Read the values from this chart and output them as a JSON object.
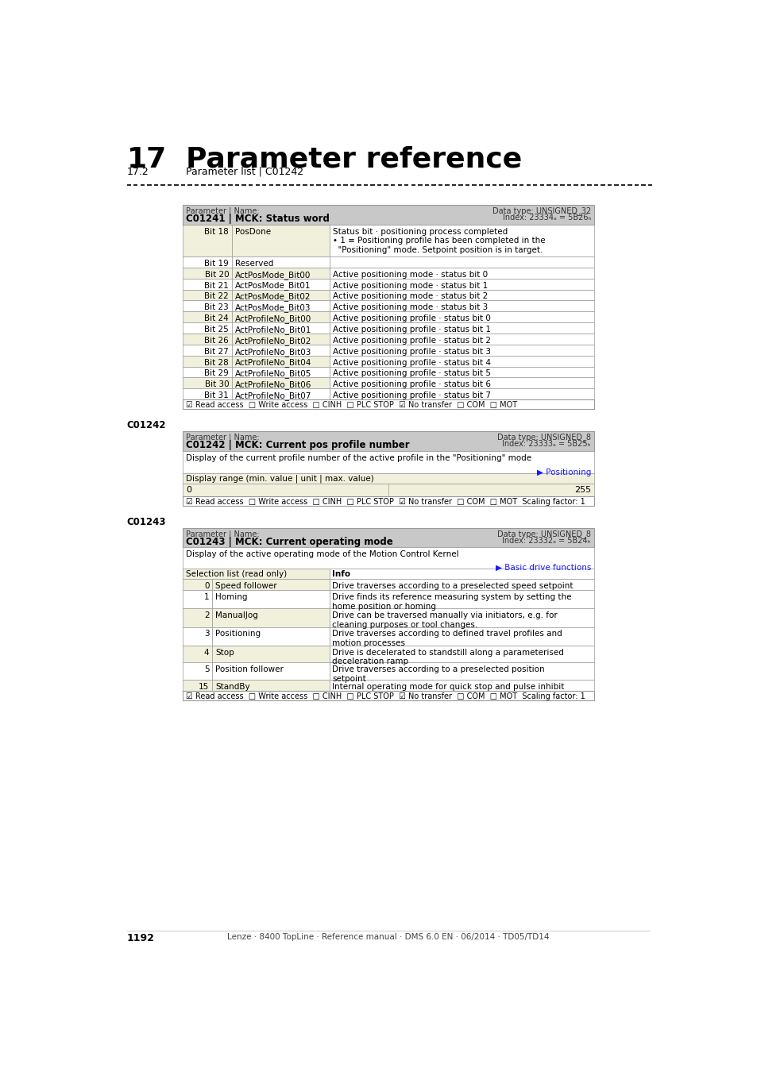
{
  "page_title_num": "17",
  "page_title": "Parameter reference",
  "page_subtitle_num": "17.2",
  "page_subtitle": "Parameter list | C01242",
  "section_label_1": "C01242",
  "section_label_2": "C01243",
  "table1": {
    "header_left": "Parameter | Name:",
    "header_title": "C01241 | MCK: Status word",
    "header_right_top": "Data type: UNSIGNED_32",
    "header_right_bot": "Index: 23334ₐ = 5B26ₕ",
    "rows": [
      [
        "Bit 18",
        "PosDone",
        "Status bit · positioning process completed\n• 1 ≡ Positioning profile has been completed in the\n  \"Positioning\" mode. Setpoint position is in target."
      ],
      [
        "Bit 19",
        "Reserved",
        ""
      ],
      [
        "Bit 20",
        "ActPosMode_Bit00",
        "Active positioning mode · status bit 0"
      ],
      [
        "Bit 21",
        "ActPosMode_Bit01",
        "Active positioning mode · status bit 1"
      ],
      [
        "Bit 22",
        "ActPosMode_Bit02",
        "Active positioning mode · status bit 2"
      ],
      [
        "Bit 23",
        "ActPosMode_Bit03",
        "Active positioning mode · status bit 3"
      ],
      [
        "Bit 24",
        "ActProfileNo_Bit00",
        "Active positioning profile · status bit 0"
      ],
      [
        "Bit 25",
        "ActProfileNo_Bit01",
        "Active positioning profile · status bit 1"
      ],
      [
        "Bit 26",
        "ActProfileNo_Bit02",
        "Active positioning profile · status bit 2"
      ],
      [
        "Bit 27",
        "ActProfileNo_Bit03",
        "Active positioning profile · status bit 3"
      ],
      [
        "Bit 28",
        "ActProfileNo_Bit04",
        "Active positioning profile · status bit 4"
      ],
      [
        "Bit 29",
        "ActProfileNo_Bit05",
        "Active positioning profile · status bit 5"
      ],
      [
        "Bit 30",
        "ActProfileNo_Bit06",
        "Active positioning profile · status bit 6"
      ],
      [
        "Bit 31",
        "ActProfileNo_Bit07",
        "Active positioning profile · status bit 7"
      ]
    ],
    "footer": "☑ Read access  □ Write access  □ CINH  □ PLC STOP  ☑ No transfer  □ COM  □ MOT"
  },
  "table2": {
    "header_left": "Parameter | Name:",
    "header_title": "C01242 | MCK: Current pos profile number",
    "header_right_top": "Data type: UNSIGNED_8",
    "header_right_bot": "Index: 23333ₐ = 5B25ₕ",
    "description": "Display of the current profile number of the active profile in the \"Positioning\" mode",
    "link": "▶ Positioning",
    "display_range_label": "Display range (min. value | unit | max. value)",
    "range_min": "0",
    "range_max": "255",
    "footer": "☑ Read access  □ Write access  □ CINH  □ PLC STOP  ☑ No transfer  □ COM  □ MOT  Scaling factor: 1"
  },
  "table3": {
    "header_left": "Parameter | Name:",
    "header_title": "C01243 | MCK: Current operating mode",
    "header_right_top": "Data type: UNSIGNED_8",
    "header_right_bot": "Index: 23332ₐ = 5B24ₕ",
    "description": "Display of the active operating mode of the Motion Control Kernel",
    "link": "▶ Basic drive functions",
    "col1_header": "Selection list (read only)",
    "col2_header": "Info",
    "rows": [
      [
        "0",
        "Speed follower",
        "Drive traverses according to a preselected speed setpoint"
      ],
      [
        "1",
        "Homing",
        "Drive finds its reference measuring system by setting the\nhome position or homing"
      ],
      [
        "2",
        "ManualJog",
        "Drive can be traversed manually via initiators, e.g. for\ncleaning purposes or tool changes."
      ],
      [
        "3",
        "Positioning",
        "Drive traverses according to defined travel profiles and\nmotion processes"
      ],
      [
        "4",
        "Stop",
        "Drive is decelerated to standstill along a parameterised\ndeceleration ramp"
      ],
      [
        "5",
        "Position follower",
        "Drive traverses according to a preselected position\nsetpoint"
      ],
      [
        "15",
        "StandBy",
        "Internal operating mode for quick stop and pulse inhibit"
      ]
    ],
    "footer": "☑ Read access  □ Write access  □ CINH  □ PLC STOP  ☑ No transfer  □ COM  □ MOT  Scaling factor: 1"
  },
  "page_number": "1192",
  "page_footer": "Lenze · 8400 TopLine · Reference manual · DMS 6.0 EN · 06/2014 · TD05/TD14",
  "bg_header": "#c8c8c8",
  "bg_odd": "#f0f0dc",
  "bg_even": "#ffffff",
  "bg_white": "#ffffff",
  "border_color": "#999999",
  "link_color": "#1a1aff"
}
